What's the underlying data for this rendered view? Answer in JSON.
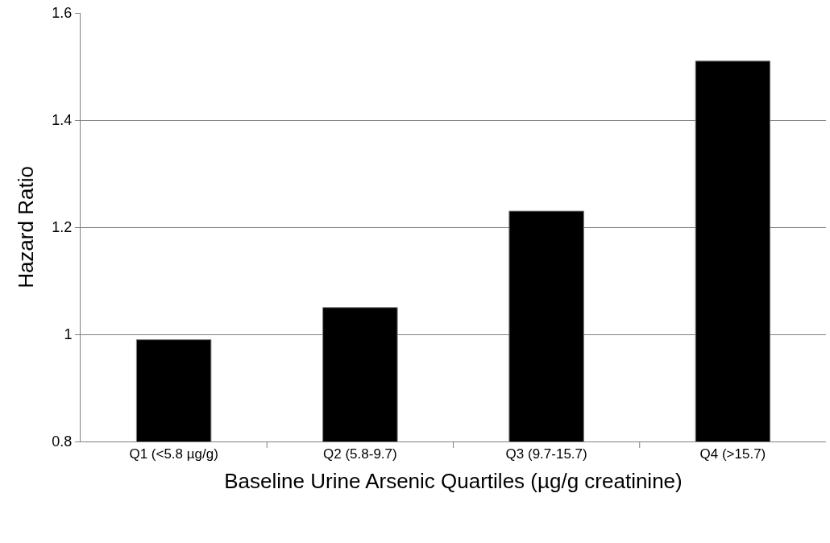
{
  "chart_data": {
    "type": "bar",
    "xlabel": "Baseline Urine Arsenic Quartiles (µg/g creatinine)",
    "ylabel": "Hazard Ratio",
    "categories": [
      "Q1 (<5.8 µg/g)",
      "Q2 (5.8-9.7)",
      "Q3 (9.7-15.7)",
      "Q4 (>15.7)"
    ],
    "values": [
      0.99,
      1.05,
      1.23,
      1.51
    ],
    "color": "#000000",
    "ylim": [
      0.8,
      1.6
    ],
    "yticks": [
      0.8,
      1,
      1.2,
      1.4,
      1.6
    ],
    "grid": "y"
  }
}
